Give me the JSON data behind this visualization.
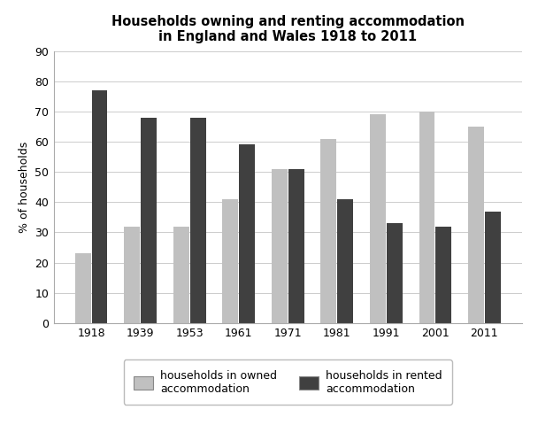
{
  "title": "Households owning and renting accommodation\nin England and Wales 1918 to 2011",
  "ylabel": "% of households",
  "years": [
    "1918",
    "1939",
    "1953",
    "1961",
    "1971",
    "1981",
    "1991",
    "2001",
    "2011"
  ],
  "owned": [
    23,
    32,
    32,
    41,
    51,
    61,
    69,
    70,
    65
  ],
  "rented": [
    77,
    68,
    68,
    59,
    51,
    41,
    33,
    32,
    37
  ],
  "owned_color": "#c0c0c0",
  "rented_color": "#404040",
  "ylim": [
    0,
    90
  ],
  "yticks": [
    0,
    10,
    20,
    30,
    40,
    50,
    60,
    70,
    80,
    90
  ],
  "legend_owned": "households in owned\naccommodation",
  "legend_rented": "households in rented\naccommodation",
  "title_fontsize": 10.5,
  "axis_fontsize": 9,
  "tick_fontsize": 9,
  "bar_width": 0.32,
  "bar_gap": 0.02,
  "background_color": "#ffffff"
}
